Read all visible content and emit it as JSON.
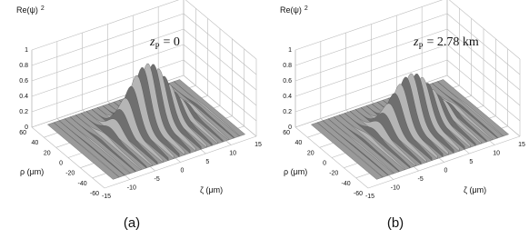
{
  "panels": [
    {
      "z_label": "Re(ψ)",
      "z_label_power": "2",
      "annotation": {
        "symbol": "z",
        "subscript": "P",
        "text": "= 0"
      },
      "label": "(a)"
    },
    {
      "z_label": "Re(ψ)",
      "z_label_power": "2",
      "annotation": {
        "symbol": "z",
        "subscript": "P",
        "text": "= 2.78 km"
      },
      "label": "(b)"
    }
  ],
  "z_ticks": [
    0,
    0.2,
    0.4,
    0.6,
    0.8,
    1
  ],
  "rho_ticks": [
    60,
    40,
    20,
    0,
    -20,
    -40,
    -60
  ],
  "zeta_ticks": [
    -15,
    -10,
    -5,
    0,
    5,
    10,
    15
  ],
  "rho_label": "ρ (μm)",
  "zeta_label": "ζ (μm)"
}
